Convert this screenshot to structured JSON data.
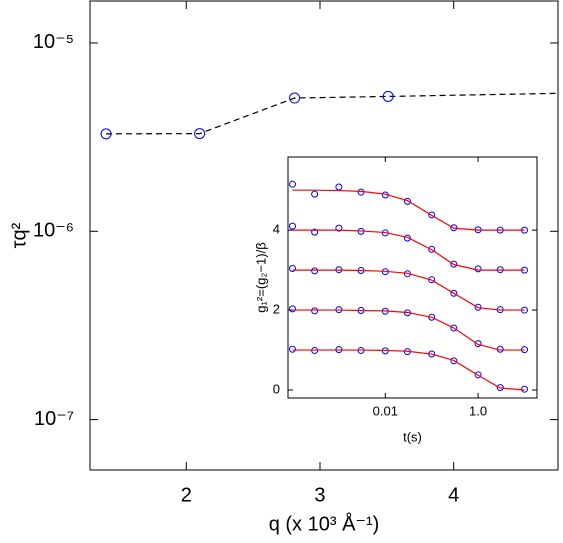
{
  "chart_data": [
    {
      "type": "line",
      "x_label": "q (x 10³ Å⁻¹)",
      "y_label": "τq²",
      "xlim": [
        1.28,
        4.78
      ],
      "xticks": [
        2,
        3,
        4
      ],
      "ylim": [
        5.4e-08,
        1.67e-05
      ],
      "y_log": true,
      "yticks": [
        {
          "value": 1e-05,
          "label": "10⁻⁵"
        },
        {
          "value": 1e-06,
          "label": "10⁻⁶"
        },
        {
          "value": 1e-07,
          "label": "10⁻⁷"
        }
      ],
      "series": [
        {
          "color": "#000000",
          "style": "dashed",
          "marker": "none",
          "x": [
            1.4,
            2.1,
            2.81,
            3.51,
            4.78
          ],
          "values": [
            3.29e-06,
            3.3e-06,
            5.1e-06,
            5.2e-06,
            5.4e-06
          ]
        },
        {
          "color": "#0000ff",
          "style": "none",
          "marker": "circle",
          "x": [
            1.4,
            2.1,
            2.81,
            3.51
          ],
          "values": [
            3.29e-06,
            3.3e-06,
            5.1e-06,
            5.2e-06
          ]
        }
      ]
    },
    {
      "type": "line",
      "x_label": "t(s)",
      "y_label": "g₁²=(g₂−1)/β",
      "x_log": true,
      "xlim": [
        8e-05,
        18.6
      ],
      "xticks": [
        0.01,
        {
          "value": 1,
          "label": "1.0"
        }
      ],
      "ylim": [
        -0.2,
        5.83
      ],
      "yticks": [
        0,
        2,
        4
      ],
      "x": [
        0.0001,
        0.0003,
        0.001,
        0.003,
        0.01,
        0.03,
        0.1,
        0.3,
        1,
        3,
        10
      ],
      "series": [
        {
          "color": "#0000ff",
          "style": "none",
          "marker": "circle",
          "values": [
            1.02,
            0.99,
            1.01,
            0.99,
            0.98,
            0.96,
            0.9,
            0.73,
            0.38,
            0.06,
            0.02
          ]
        },
        {
          "color": "#0000ff",
          "style": "none",
          "marker": "circle",
          "values": [
            2.03,
            1.98,
            2.01,
            1.99,
            1.97,
            1.93,
            1.82,
            1.55,
            1.16,
            1.02,
            1.01
          ]
        },
        {
          "color": "#0000ff",
          "style": "none",
          "marker": "circle",
          "values": [
            3.04,
            2.98,
            3.01,
            2.99,
            2.96,
            2.91,
            2.76,
            2.42,
            2.07,
            2.01,
            2.0
          ]
        },
        {
          "color": "#0000ff",
          "style": "none",
          "marker": "circle",
          "values": [
            4.1,
            3.95,
            4.05,
            3.97,
            3.93,
            3.8,
            3.52,
            3.15,
            3.03,
            3.01,
            3.0
          ]
        },
        {
          "color": "#0000ff",
          "style": "none",
          "marker": "circle",
          "values": [
            5.15,
            4.9,
            5.08,
            4.95,
            4.88,
            4.72,
            4.38,
            4.06,
            4.01,
            4.0,
            4.0
          ]
        },
        {
          "color": "#ff0000",
          "style": "solid",
          "marker": "none",
          "values": [
            1,
            1,
            1,
            1,
            0.99,
            0.97,
            0.9,
            0.74,
            0.37,
            0.05,
            0
          ]
        },
        {
          "color": "#ff0000",
          "style": "solid",
          "marker": "none",
          "values": [
            2,
            2,
            2,
            1.99,
            1.98,
            1.94,
            1.82,
            1.55,
            1.14,
            1,
            1
          ]
        },
        {
          "color": "#ff0000",
          "style": "solid",
          "marker": "none",
          "values": [
            3,
            3,
            3,
            2.99,
            2.97,
            2.92,
            2.75,
            2.42,
            2.06,
            2,
            2
          ]
        },
        {
          "color": "#ff0000",
          "style": "solid",
          "marker": "none",
          "values": [
            4,
            4,
            4,
            3.98,
            3.94,
            3.82,
            3.51,
            3.14,
            3,
            3,
            3
          ]
        },
        {
          "color": "#ff0000",
          "style": "solid",
          "marker": "none",
          "values": [
            5,
            5,
            4.99,
            4.97,
            4.9,
            4.74,
            4.37,
            4.05,
            4,
            4,
            4
          ]
        }
      ]
    }
  ]
}
